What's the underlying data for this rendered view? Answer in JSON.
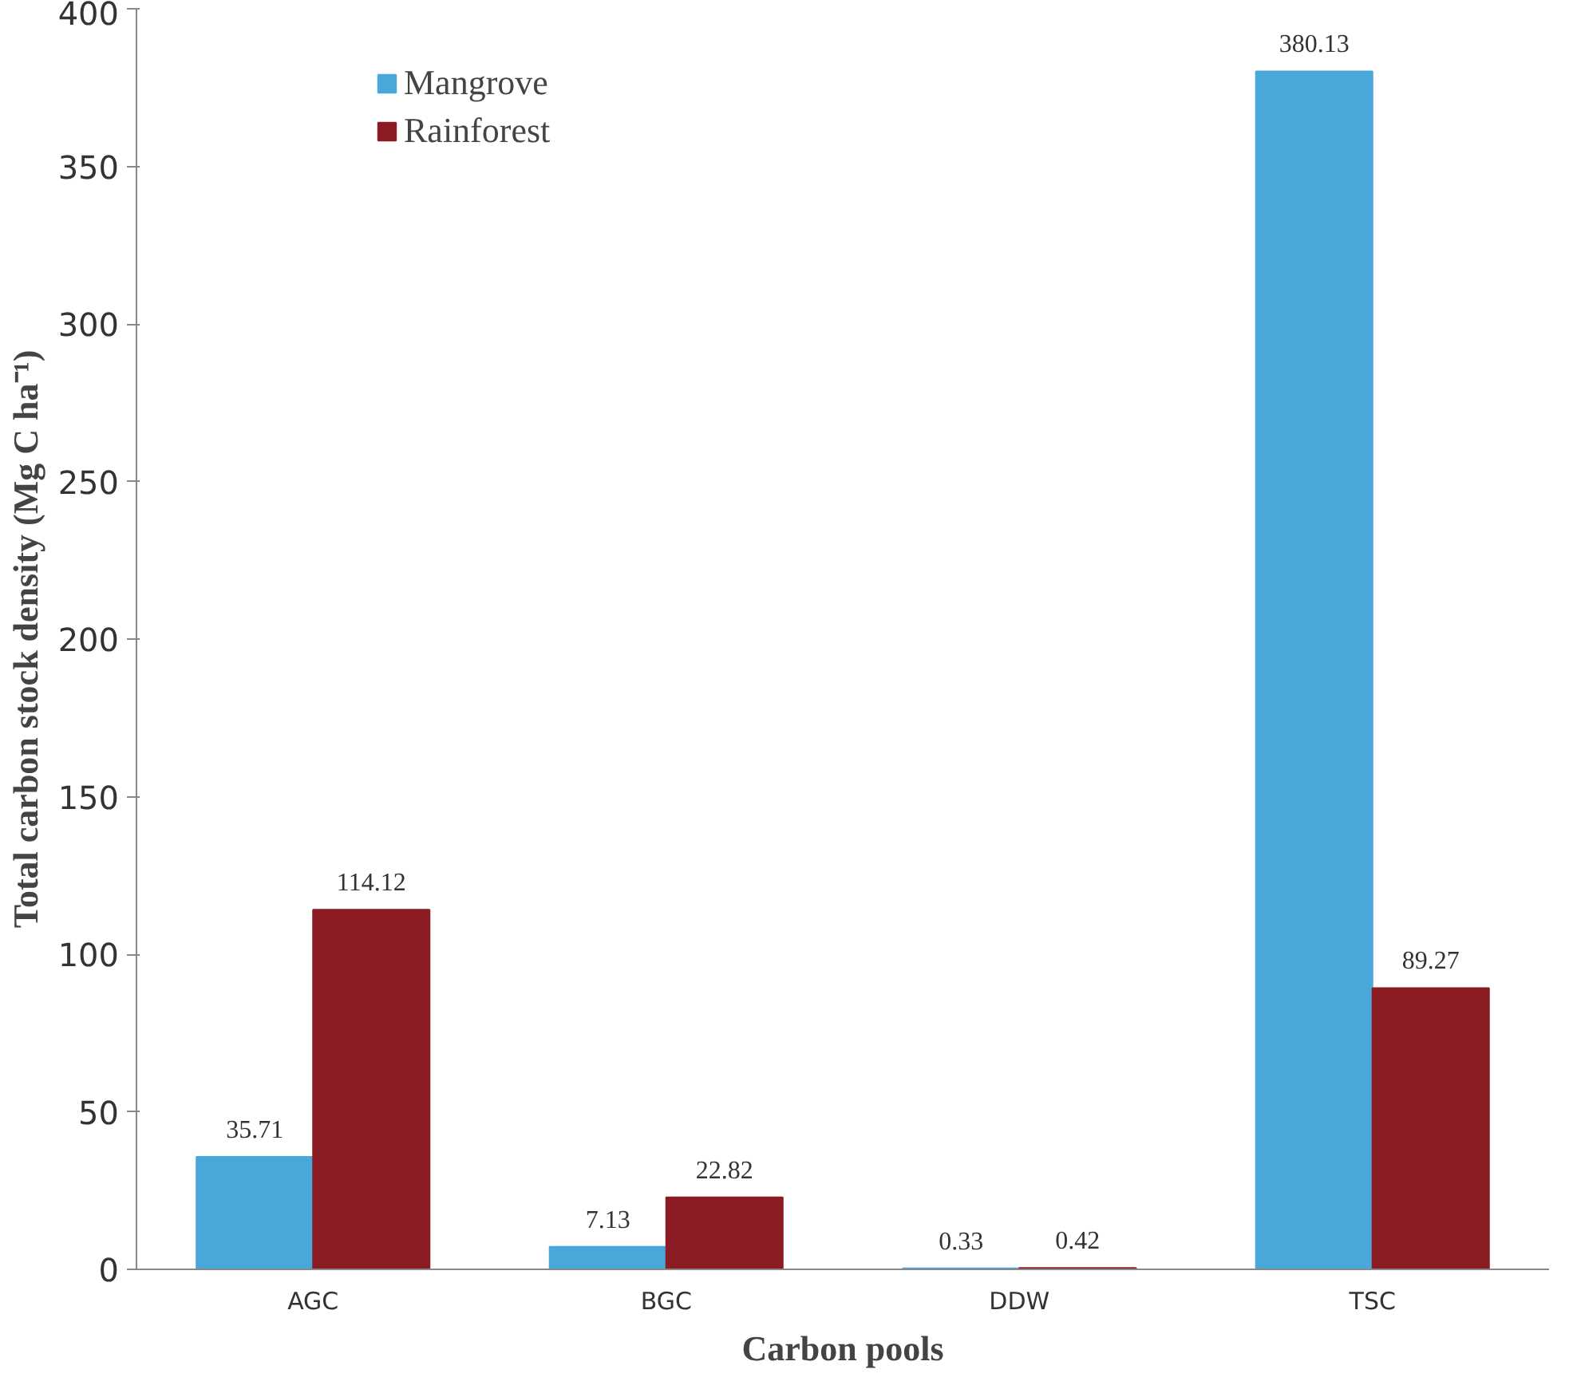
{
  "chart_data": {
    "type": "bar",
    "xlabel": "Carbon pools",
    "ylabel": "Total carbon stock density (Mg C ha⁻¹)",
    "categories": [
      "AGC",
      "BGC",
      "DDW",
      "TSC"
    ],
    "series": [
      {
        "name": "Mangrove",
        "color": "#4aa7d9",
        "values": [
          35.71,
          7.13,
          0.33,
          380.13
        ]
      },
      {
        "name": "Rainforest",
        "color": "#8b1c24",
        "values": [
          114.12,
          22.82,
          0.42,
          89.27
        ]
      }
    ],
    "ylim": [
      0,
      400
    ],
    "yticks": [
      0,
      50,
      100,
      150,
      200,
      250,
      300,
      350,
      400
    ],
    "data_labels": true,
    "grid": false,
    "legend": "top left"
  }
}
